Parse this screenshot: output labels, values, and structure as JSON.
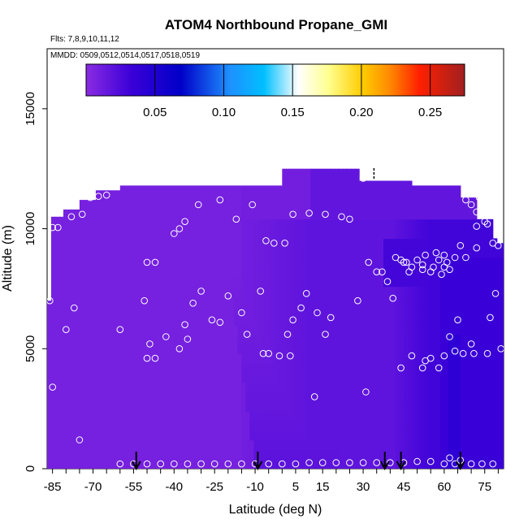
{
  "chart_data": {
    "type": "heatmap",
    "title": "ATOM4 Northbound Propane_GMI",
    "flights_label": "Flts: 7,8,9,10,11,12",
    "dates_label": "MMDD: 0509,0512,0514,0517,0518,0519",
    "xlabel": "Latitude (deg N)",
    "ylabel": "Altitude (m)",
    "xlim": [
      -87,
      82
    ],
    "ylim": [
      0,
      17500
    ],
    "x_ticks": [
      -85,
      -70,
      -55,
      -40,
      -25,
      -10,
      5,
      15,
      30,
      45,
      60,
      75
    ],
    "y_ticks": [
      0,
      5000,
      10000,
      15000
    ],
    "colorbar": {
      "range": [
        0,
        0.275
      ],
      "ticks": [
        0.05,
        0.1,
        0.15,
        0.2,
        0.25
      ],
      "tick_labels": [
        "0.05",
        "0.10",
        "0.15",
        "0.20",
        "0.25"
      ],
      "colors": [
        "#8a2be2",
        "#5a10e0",
        "#0000cd",
        "#1e90ff",
        "#00bfff",
        "#ffffff",
        "#ffff80",
        "#ffa500",
        "#ff0000",
        "#a52a2a"
      ]
    },
    "profile_markers_lat": [
      -54,
      -9,
      38,
      44,
      66
    ],
    "observations": [
      [
        -85,
        10050
      ],
      [
        -83,
        10050
      ],
      [
        -78,
        10500
      ],
      [
        -74,
        10600
      ],
      [
        -71,
        11300
      ],
      [
        -68,
        11350
      ],
      [
        -65,
        11400
      ],
      [
        -50,
        8600
      ],
      [
        -47,
        8600
      ],
      [
        -40,
        9800
      ],
      [
        -38,
        10000
      ],
      [
        -36,
        10300
      ],
      [
        -31,
        11000
      ],
      [
        -23,
        11200
      ],
      [
        -17,
        10400
      ],
      [
        -11,
        11000
      ],
      [
        -6,
        9500
      ],
      [
        -3,
        9400
      ],
      [
        1,
        9400
      ],
      [
        4,
        10600
      ],
      [
        10,
        10650
      ],
      [
        16,
        10600
      ],
      [
        22,
        10500
      ],
      [
        25,
        10400
      ],
      [
        32,
        8600
      ],
      [
        30,
        12100
      ],
      [
        -86,
        7000
      ],
      [
        -77,
        6700
      ],
      [
        -80,
        5800
      ],
      [
        -60,
        5800
      ],
      [
        -51,
        7000
      ],
      [
        -50,
        4600
      ],
      [
        -47,
        4600
      ],
      [
        -49,
        5200
      ],
      [
        -43,
        5500
      ],
      [
        -38,
        5000
      ],
      [
        -36,
        6000
      ],
      [
        -35,
        5400
      ],
      [
        -33,
        6900
      ],
      [
        -30,
        7400
      ],
      [
        -26,
        6200
      ],
      [
        -23,
        6100
      ],
      [
        -20,
        7200
      ],
      [
        -15,
        6500
      ],
      [
        -13,
        5600
      ],
      [
        -8,
        7400
      ],
      [
        -7,
        4800
      ],
      [
        -5,
        4800
      ],
      [
        -1,
        4700
      ],
      [
        2,
        5600
      ],
      [
        3,
        4700
      ],
      [
        4,
        6200
      ],
      [
        7,
        6700
      ],
      [
        9,
        7300
      ],
      [
        12,
        3000
      ],
      [
        13,
        6500
      ],
      [
        16,
        5600
      ],
      [
        18,
        6300
      ],
      [
        28,
        7000
      ],
      [
        31,
        3200
      ],
      [
        35,
        8200
      ],
      [
        37,
        8200
      ],
      [
        39,
        7800
      ],
      [
        42,
        8800
      ],
      [
        44,
        8700
      ],
      [
        45,
        8600
      ],
      [
        46,
        8600
      ],
      [
        47,
        8200
      ],
      [
        48,
        8400
      ],
      [
        50,
        8700
      ],
      [
        52,
        8500
      ],
      [
        52,
        8300
      ],
      [
        53,
        8900
      ],
      [
        55,
        8200
      ],
      [
        56,
        8400
      ],
      [
        60,
        8400
      ],
      [
        58,
        8700
      ],
      [
        59,
        8100
      ],
      [
        61,
        8600
      ],
      [
        62,
        8300
      ],
      [
        64,
        8800
      ],
      [
        48,
        4700
      ],
      [
        52,
        4200
      ],
      [
        53,
        4500
      ],
      [
        55,
        4600
      ],
      [
        58,
        4200
      ],
      [
        60,
        4700
      ],
      [
        62,
        5500
      ],
      [
        64,
        4900
      ],
      [
        65,
        6200
      ],
      [
        67,
        4800
      ],
      [
        70,
        5200
      ],
      [
        71,
        4800
      ],
      [
        76,
        4800
      ],
      [
        77,
        6300
      ],
      [
        79,
        7300
      ],
      [
        81,
        5000
      ],
      [
        44,
        4200
      ],
      [
        41,
        7100
      ],
      [
        -85,
        3400
      ],
      [
        -75,
        1200
      ],
      [
        -60,
        200
      ],
      [
        -55,
        200
      ],
      [
        -50,
        200
      ],
      [
        -45,
        200
      ],
      [
        -40,
        200
      ],
      [
        -35,
        200
      ],
      [
        -30,
        200
      ],
      [
        -25,
        200
      ],
      [
        -20,
        200
      ],
      [
        -15,
        200
      ],
      [
        -10,
        200
      ],
      [
        -5,
        200
      ],
      [
        0,
        200
      ],
      [
        5,
        200
      ],
      [
        10,
        250
      ],
      [
        15,
        250
      ],
      [
        20,
        250
      ],
      [
        25,
        250
      ],
      [
        30,
        250
      ],
      [
        35,
        250
      ],
      [
        40,
        250
      ],
      [
        45,
        250
      ],
      [
        50,
        300
      ],
      [
        55,
        300
      ],
      [
        60,
        200
      ],
      [
        62,
        450
      ],
      [
        64,
        200
      ],
      [
        66,
        350
      ],
      [
        70,
        200
      ],
      [
        74,
        200
      ],
      [
        78,
        200
      ],
      [
        68,
        11200
      ],
      [
        70,
        11000
      ],
      [
        72,
        10700
      ],
      [
        73,
        11300
      ],
      [
        75,
        10300
      ],
      [
        78,
        9400
      ],
      [
        80,
        9300
      ],
      [
        72,
        10100
      ],
      [
        76,
        10200
      ],
      [
        57,
        9000
      ],
      [
        60,
        8900
      ],
      [
        66,
        9300
      ],
      [
        68,
        8800
      ],
      [
        72,
        9200
      ]
    ]
  }
}
